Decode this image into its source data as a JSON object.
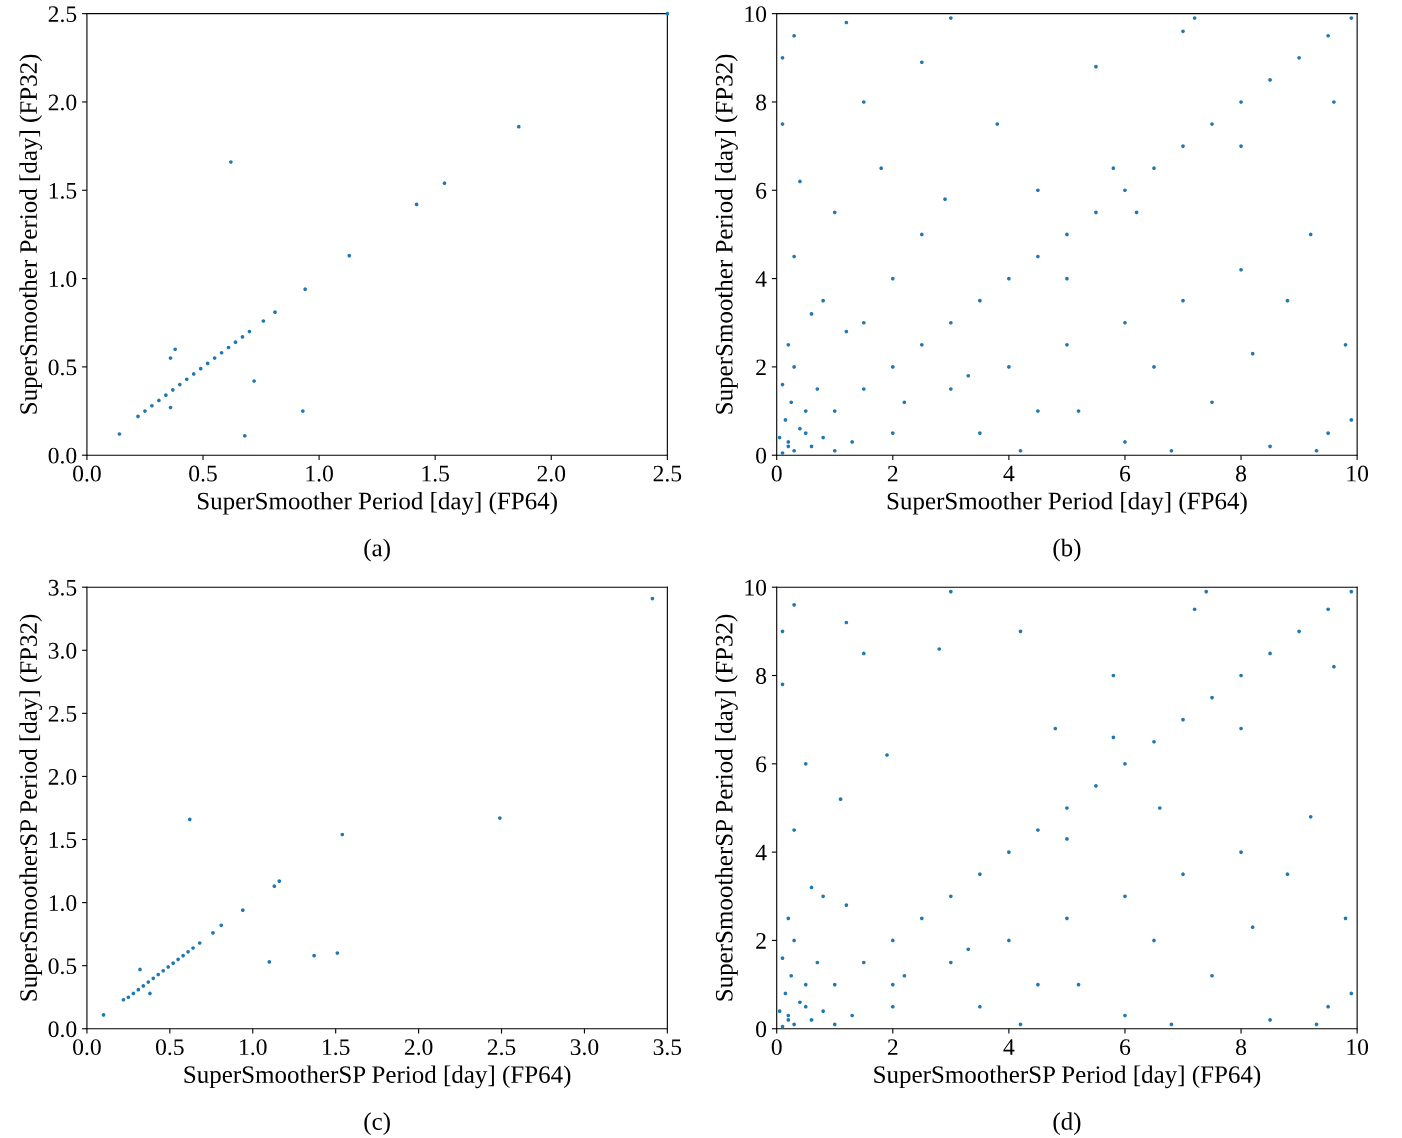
{
  "chart_data": [
    {
      "type": "scatter",
      "xlabel": "SuperSmoother Period [day] (FP64)",
      "ylabel": "SuperSmoother Period [day] (FP32)",
      "annotations": [
        "(a)"
      ],
      "marker": "circle",
      "grid": false,
      "xlim": [
        0,
        2.5
      ],
      "ylim": [
        0,
        2.5
      ],
      "xticks": [
        {
          "value": 0,
          "label": "0.0"
        },
        {
          "value": 0.5,
          "label": "0.5"
        },
        {
          "value": 1,
          "label": "1.0"
        },
        {
          "value": 1.5,
          "label": "1.5"
        },
        {
          "value": 2,
          "label": "2.0"
        },
        {
          "value": 2.5,
          "label": "2.5"
        }
      ],
      "yticks": [
        {
          "value": 0,
          "label": "0.0"
        },
        {
          "value": 0.5,
          "label": "0.5"
        },
        {
          "value": 1,
          "label": "1.0"
        },
        {
          "value": 1.5,
          "label": "1.5"
        },
        {
          "value": 2,
          "label": "2.0"
        },
        {
          "value": 2.5,
          "label": "2.5"
        }
      ],
      "series": [
        {
          "color": "#1f77b4",
          "x": [
            0.14,
            0.22,
            0.25,
            0.28,
            0.31,
            0.34,
            0.37,
            0.4,
            0.43,
            0.46,
            0.49,
            0.52,
            0.55,
            0.58,
            0.61,
            0.64,
            0.67,
            0.7,
            0.36,
            0.38,
            0.36,
            0.72,
            0.68,
            0.93,
            0.62,
            0.76,
            0.81,
            0.94,
            1.13,
            1.42,
            1.54,
            1.86,
            2.5
          ],
          "values": [
            0.12,
            0.22,
            0.25,
            0.28,
            0.31,
            0.34,
            0.37,
            0.4,
            0.43,
            0.46,
            0.49,
            0.52,
            0.55,
            0.58,
            0.61,
            0.64,
            0.67,
            0.7,
            0.55,
            0.6,
            0.27,
            0.42,
            0.11,
            0.25,
            1.66,
            0.76,
            0.81,
            0.94,
            1.13,
            1.42,
            1.54,
            1.86,
            2.5
          ]
        }
      ]
    },
    {
      "type": "scatter",
      "xlabel": "SuperSmoother Period [day] (FP64)",
      "ylabel": "SuperSmoother Period [day] (FP32)",
      "annotations": [
        "(b)"
      ],
      "marker": "circle",
      "grid": false,
      "xlim": [
        0,
        10
      ],
      "ylim": [
        0,
        10
      ],
      "xticks": [
        0,
        2,
        4,
        6,
        8,
        10
      ],
      "yticks": [
        0,
        2,
        4,
        6,
        8,
        10
      ],
      "series": [
        {
          "color": "#1f77b4",
          "x": [
            0.2,
            0.5,
            1,
            1.5,
            2,
            2.5,
            3,
            3.5,
            4,
            4.5,
            5,
            5.5,
            6,
            6.5,
            7,
            7.5,
            8,
            8.5,
            9,
            9.5,
            9.9,
            0.1,
            0.2,
            0.3,
            0.15,
            0.4,
            0.25,
            0.6,
            0.1,
            0.5,
            0.8,
            0.3,
            1.0,
            0.05,
            0.7,
            0.2,
            1.5,
            2,
            2.5,
            2.9,
            3,
            4,
            5,
            6,
            7,
            8,
            0.3,
            1.2,
            2.5,
            3.8,
            5.5,
            7.0,
            0.1,
            0.4,
            1.0,
            1.8,
            4.5,
            6.2,
            3.5,
            4.5,
            6.0,
            7.5,
            8.5,
            9.5,
            9.8,
            9.2,
            8.0,
            6.5,
            5.0,
            2.0,
            1.5,
            3.0,
            4.2,
            8.8,
            9.6,
            5.8,
            7.2,
            0.8,
            1.2,
            2.2,
            9.9,
            0.1,
            0.3,
            0.6,
            1.3,
            3.3,
            5.2,
            6.8,
            8.2,
            9.3
          ],
          "values": [
            0.2,
            0.5,
            1,
            1.5,
            2,
            2.5,
            3,
            3.5,
            4,
            4.5,
            5,
            5.5,
            6,
            6.5,
            7,
            7.5,
            8,
            8.5,
            9,
            9.5,
            9.9,
            0.05,
            0.3,
            0.1,
            0.8,
            0.6,
            1.2,
            0.2,
            1.6,
            1.0,
            0.4,
            2.0,
            0.1,
            0.4,
            1.5,
            2.5,
            3.0,
            4.0,
            5.0,
            5.8,
            1.5,
            2.0,
            2.5,
            3.0,
            3.5,
            4.2,
            9.5,
            9.8,
            8.9,
            7.5,
            8.8,
            9.6,
            7.5,
            6.2,
            5.5,
            6.5,
            6.0,
            5.5,
            0.5,
            1.0,
            0.3,
            1.2,
            0.2,
            0.5,
            2.5,
            5.0,
            7.0,
            2.0,
            4.0,
            0.5,
            8.0,
            9.9,
            0.1,
            3.5,
            8.0,
            6.5,
            9.9,
            3.5,
            2.8,
            1.2,
            0.8,
            9.0,
            4.5,
            3.2,
            0.3,
            1.8,
            1.0,
            0.1,
            2.3,
            0.1
          ]
        }
      ]
    },
    {
      "type": "scatter",
      "xlabel": "SuperSmootherSP Period [day] (FP64)",
      "ylabel": "SuperSmootherSP Period [day] (FP32)",
      "annotations": [
        "(c)"
      ],
      "marker": "circle",
      "grid": false,
      "xlim": [
        0,
        3.5
      ],
      "ylim": [
        0,
        3.5
      ],
      "xticks": [
        {
          "value": 0,
          "label": "0.0"
        },
        {
          "value": 0.5,
          "label": "0.5"
        },
        {
          "value": 1,
          "label": "1.0"
        },
        {
          "value": 1.5,
          "label": "1.5"
        },
        {
          "value": 2,
          "label": "2.0"
        },
        {
          "value": 2.5,
          "label": "2.5"
        },
        {
          "value": 3,
          "label": "3.0"
        },
        {
          "value": 3.5,
          "label": "3.5"
        }
      ],
      "yticks": [
        {
          "value": 0,
          "label": "0.0"
        },
        {
          "value": 0.5,
          "label": "0.5"
        },
        {
          "value": 1,
          "label": "1.0"
        },
        {
          "value": 1.5,
          "label": "1.5"
        },
        {
          "value": 2,
          "label": "2.0"
        },
        {
          "value": 2.5,
          "label": "2.5"
        },
        {
          "value": 3,
          "label": "3.0"
        },
        {
          "value": 3.5,
          "label": "3.5"
        }
      ],
      "series": [
        {
          "color": "#1f77b4",
          "x": [
            0.1,
            0.22,
            0.25,
            0.28,
            0.31,
            0.34,
            0.37,
            0.4,
            0.43,
            0.46,
            0.49,
            0.52,
            0.55,
            0.58,
            0.61,
            0.64,
            0.68,
            0.32,
            0.38,
            0.62,
            0.76,
            0.81,
            0.94,
            1.1,
            1.13,
            1.16,
            1.37,
            1.51,
            1.54,
            2.49,
            3.41
          ],
          "values": [
            0.11,
            0.23,
            0.25,
            0.28,
            0.31,
            0.34,
            0.37,
            0.4,
            0.43,
            0.46,
            0.49,
            0.52,
            0.55,
            0.58,
            0.61,
            0.64,
            0.68,
            0.47,
            0.28,
            1.66,
            0.76,
            0.82,
            0.94,
            0.53,
            1.13,
            1.17,
            0.58,
            0.6,
            1.54,
            1.67,
            3.41
          ]
        }
      ]
    },
    {
      "type": "scatter",
      "xlabel": "SuperSmootherSP Period [day] (FP64)",
      "ylabel": "SuperSmootherSP Period [day] (FP32)",
      "annotations": [
        "(d)"
      ],
      "marker": "circle",
      "grid": false,
      "xlim": [
        0,
        10
      ],
      "ylim": [
        0,
        10
      ],
      "xticks": [
        0,
        2,
        4,
        6,
        8,
        10
      ],
      "yticks": [
        0,
        2,
        4,
        6,
        8,
        10
      ],
      "series": [
        {
          "color": "#1f77b4",
          "x": [
            0.2,
            0.5,
            1,
            1.5,
            2,
            2.5,
            3,
            3.5,
            4,
            4.5,
            5,
            5.5,
            6,
            6.5,
            7,
            7.5,
            8,
            8.5,
            9,
            9.5,
            9.9,
            0.1,
            0.2,
            0.3,
            0.15,
            0.4,
            0.25,
            0.6,
            0.1,
            0.5,
            0.8,
            0.3,
            1.0,
            0.05,
            0.7,
            0.2,
            2,
            3,
            4,
            5,
            6,
            7,
            8,
            0.3,
            1.2,
            2.8,
            4.2,
            5.8,
            7.2,
            0.1,
            0.5,
            1.1,
            1.9,
            4.8,
            6.6,
            3.5,
            4.5,
            6.0,
            7.5,
            8.5,
            9.5,
            9.8,
            9.2,
            8.0,
            6.5,
            5.0,
            2.0,
            1.5,
            3.0,
            4.2,
            8.8,
            9.6,
            5.8,
            7.4,
            0.8,
            1.2,
            2.2,
            9.9,
            0.1,
            0.3,
            0.6,
            1.3,
            3.3,
            5.2,
            6.8,
            8.2,
            9.3
          ],
          "values": [
            0.2,
            0.5,
            1,
            1.5,
            2,
            2.5,
            3,
            3.5,
            4,
            4.5,
            5,
            5.5,
            6,
            6.5,
            7,
            7.5,
            8,
            8.5,
            9,
            9.5,
            9.9,
            0.05,
            0.3,
            0.1,
            0.8,
            0.6,
            1.2,
            0.2,
            1.6,
            1.0,
            0.4,
            2.0,
            0.1,
            0.4,
            1.5,
            2.5,
            1.0,
            1.5,
            2.0,
            2.5,
            3.0,
            3.5,
            4.0,
            9.6,
            9.2,
            8.6,
            9.0,
            8.0,
            9.5,
            7.8,
            6.0,
            5.2,
            6.2,
            6.8,
            5.0,
            0.5,
            1.0,
            0.3,
            1.2,
            0.2,
            0.5,
            2.5,
            4.8,
            6.8,
            2.0,
            4.3,
            0.5,
            8.5,
            9.9,
            0.1,
            3.5,
            8.2,
            6.6,
            9.9,
            3.0,
            2.8,
            1.2,
            0.8,
            9.0,
            4.5,
            3.2,
            0.3,
            1.8,
            1.0,
            0.1,
            2.3,
            0.1
          ]
        }
      ]
    }
  ]
}
